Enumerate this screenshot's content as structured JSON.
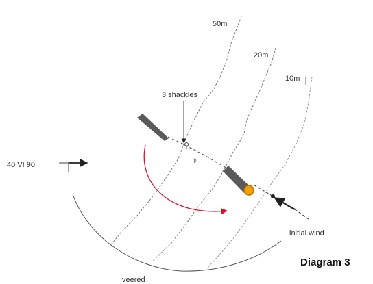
{
  "diagram": {
    "title": "Diagram 3",
    "contours": {
      "c50": "50m",
      "c20": "20m",
      "c10": "10m"
    },
    "labels": {
      "shackles": "3 shackles",
      "initial_wind": "initial wind",
      "veered": "veered",
      "left_wind": "40 VI 90"
    },
    "colors": {
      "line": "#777777",
      "arc": "#555555",
      "swing": "#e0102a",
      "boat": "#555555",
      "anchor": "#f2a300"
    }
  }
}
